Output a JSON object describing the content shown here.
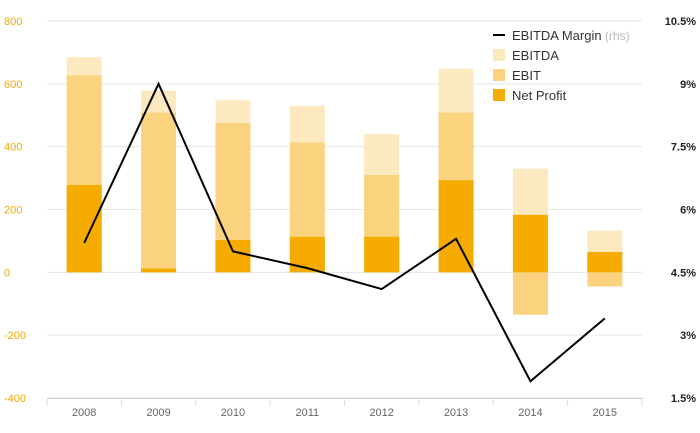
{
  "chart_data": {
    "type": "bar",
    "categories": [
      "2008",
      "2009",
      "2010",
      "2011",
      "2012",
      "2013",
      "2014",
      "2015"
    ],
    "series": [
      {
        "name": "EBITDA",
        "axis": "left",
        "color": "#fde9bf",
        "values": [
          685,
          578,
          548,
          530,
          440,
          648,
          330,
          133
        ]
      },
      {
        "name": "EBIT",
        "axis": "left",
        "color": "#fbd27d",
        "values": [
          627,
          508,
          475,
          413,
          310,
          508,
          -135,
          -45
        ]
      },
      {
        "name": "Net Profit",
        "axis": "left",
        "color": "#f6ab00",
        "values": [
          278,
          12,
          103,
          113,
          113,
          293,
          183,
          65
        ]
      },
      {
        "name": "EBITDA Margin",
        "name_suffix": "(rhs)",
        "axis": "right",
        "type": "line",
        "color": "#000000",
        "values": [
          5.2,
          9.0,
          5.0,
          4.6,
          4.1,
          5.3,
          1.9,
          3.4
        ]
      }
    ],
    "y_left": {
      "ticks": [
        "800",
        "600",
        "400",
        "200",
        "0",
        "-200",
        "-400"
      ],
      "ylim": [
        -400,
        800
      ]
    },
    "y_right": {
      "ticks": [
        "10.5%",
        "9%",
        "7.5%",
        "6%",
        "4.5%",
        "3%",
        "1.5%"
      ],
      "ylim": [
        1.5,
        10.5
      ]
    },
    "legend_order": [
      "EBITDA Margin",
      "EBITDA",
      "EBIT",
      "Net Profit"
    ],
    "legend_position": "top-right",
    "grid": true
  }
}
